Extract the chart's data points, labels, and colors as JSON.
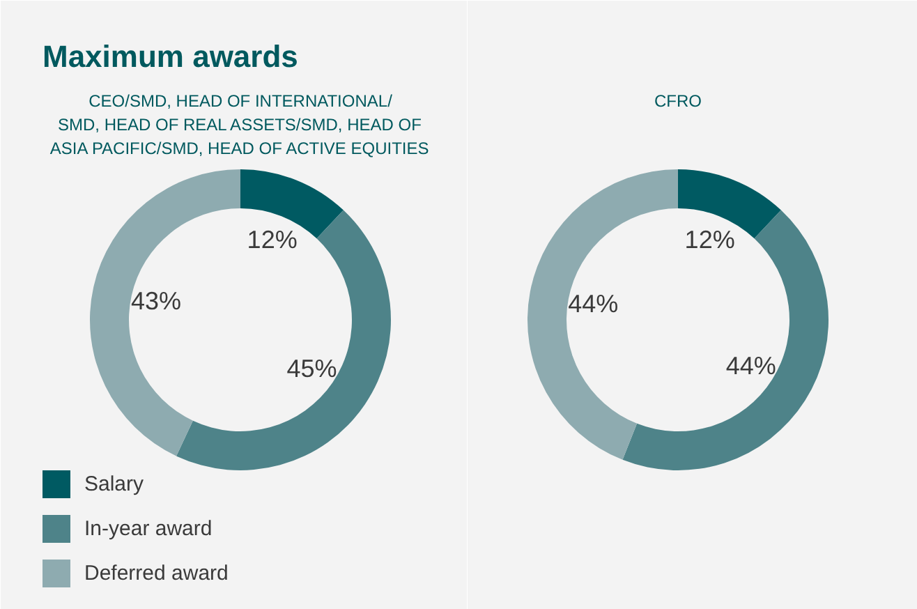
{
  "chart_data": [
    {
      "type": "donut",
      "title": "Maximum awards",
      "subtitle": "CEO/SMD, HEAD OF INTERNATIONAL/\nSMD, HEAD OF REAL ASSETS/SMD, HEAD OF\nASIA PACIFIC/SMD, HEAD OF ACTIVE EQUITIES",
      "categories": [
        "Salary",
        "In-year award",
        "Deferred award"
      ],
      "values": [
        12,
        45,
        43
      ],
      "value_labels": [
        "12%",
        "45%",
        "43%"
      ],
      "colors": [
        "#005a62",
        "#4e8389",
        "#8eabb0"
      ],
      "legend": "bottom left"
    },
    {
      "type": "donut",
      "subtitle": "CFRO",
      "categories": [
        null,
        null,
        null
      ],
      "values": [
        12,
        44,
        44
      ],
      "value_labels": [
        "12%",
        "44%",
        "44%"
      ],
      "colors": [
        "#005a62",
        "#4e8389",
        "#8eabb0"
      ]
    }
  ]
}
